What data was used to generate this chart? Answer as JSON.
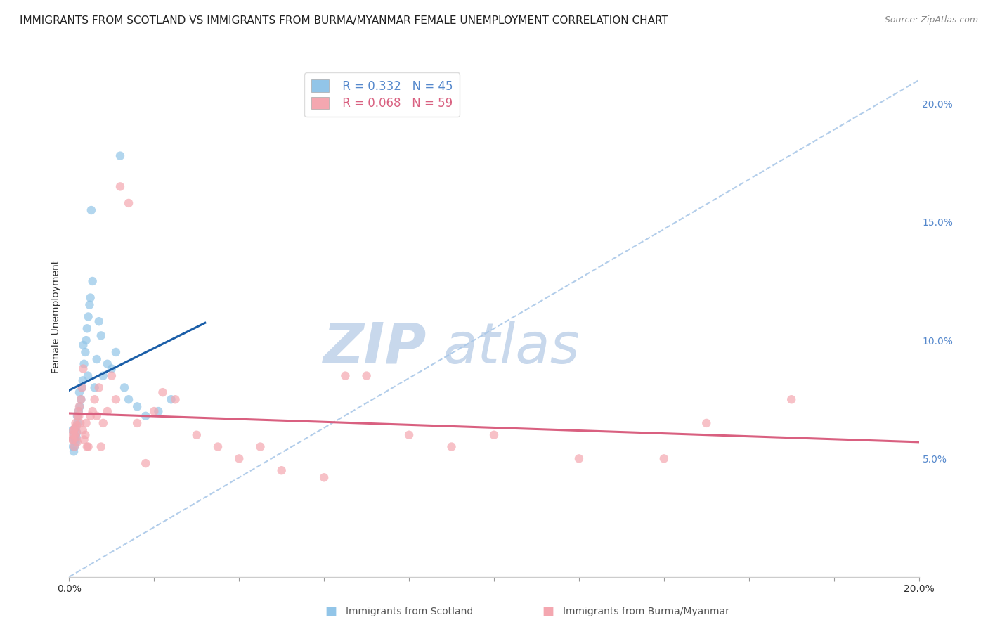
{
  "title": "IMMIGRANTS FROM SCOTLAND VS IMMIGRANTS FROM BURMA/MYANMAR FEMALE UNEMPLOYMENT CORRELATION CHART",
  "source": "Source: ZipAtlas.com",
  "ylabel": "Female Unemployment",
  "right_yticks": [
    "5.0%",
    "10.0%",
    "15.0%",
    "20.0%"
  ],
  "right_ytick_vals": [
    5.0,
    10.0,
    15.0,
    20.0
  ],
  "legend_scotland_r": "R = 0.332",
  "legend_scotland_n": "N = 45",
  "legend_burma_r": "R = 0.068",
  "legend_burma_n": "N = 59",
  "scotland_color": "#92c5e8",
  "burma_color": "#f4a7b0",
  "scotland_line_color": "#1a5ea8",
  "burma_line_color": "#d96080",
  "ref_line_color": "#aac8e8",
  "watermark_zip": "ZIP",
  "watermark_atlas": "atlas",
  "watermark_color": "#c8d8ec",
  "scotland_x": [
    0.08,
    0.1,
    0.12,
    0.13,
    0.15,
    0.16,
    0.17,
    0.18,
    0.2,
    0.22,
    0.25,
    0.28,
    0.3,
    0.32,
    0.35,
    0.38,
    0.4,
    0.42,
    0.45,
    0.48,
    0.5,
    0.55,
    0.6,
    0.65,
    0.7,
    0.8,
    0.9,
    1.0,
    1.1,
    1.2,
    1.4,
    1.6,
    1.8,
    2.1,
    2.4,
    0.09,
    0.11,
    0.14,
    0.19,
    0.24,
    0.33,
    0.44,
    0.52,
    0.75,
    1.3
  ],
  "scotland_y": [
    6.2,
    5.8,
    6.0,
    5.5,
    6.3,
    5.7,
    5.9,
    6.1,
    6.5,
    7.0,
    7.2,
    7.5,
    8.0,
    8.3,
    9.0,
    9.5,
    10.0,
    10.5,
    11.0,
    11.5,
    11.8,
    12.5,
    8.0,
    9.2,
    10.8,
    8.5,
    9.0,
    8.8,
    9.5,
    17.8,
    7.5,
    7.2,
    6.8,
    7.0,
    7.5,
    5.5,
    5.3,
    5.8,
    6.8,
    7.8,
    9.8,
    8.5,
    15.5,
    10.2,
    8.0
  ],
  "burma_x": [
    0.07,
    0.09,
    0.1,
    0.12,
    0.13,
    0.14,
    0.15,
    0.16,
    0.17,
    0.18,
    0.19,
    0.2,
    0.22,
    0.24,
    0.26,
    0.28,
    0.3,
    0.32,
    0.35,
    0.38,
    0.4,
    0.45,
    0.5,
    0.55,
    0.6,
    0.7,
    0.8,
    0.9,
    1.0,
    1.2,
    1.4,
    1.6,
    2.0,
    2.5,
    3.0,
    3.5,
    4.0,
    5.0,
    6.0,
    7.0,
    8.0,
    9.0,
    14.0,
    0.08,
    0.11,
    0.23,
    0.42,
    0.65,
    1.1,
    1.8,
    2.2,
    4.5,
    6.5,
    10.0,
    12.0,
    15.0,
    17.0,
    0.33,
    0.75
  ],
  "burma_y": [
    6.0,
    5.8,
    6.2,
    5.5,
    6.0,
    6.3,
    6.5,
    5.9,
    6.1,
    6.4,
    5.7,
    6.8,
    7.0,
    7.2,
    6.5,
    7.5,
    8.0,
    6.2,
    5.8,
    6.0,
    6.5,
    5.5,
    6.8,
    7.0,
    7.5,
    8.0,
    6.5,
    7.0,
    8.5,
    16.5,
    15.8,
    6.5,
    7.0,
    7.5,
    6.0,
    5.5,
    5.0,
    4.5,
    4.2,
    8.5,
    6.0,
    5.5,
    5.0,
    5.8,
    6.2,
    6.8,
    5.5,
    6.8,
    7.5,
    4.8,
    7.8,
    5.5,
    8.5,
    6.0,
    5.0,
    6.5,
    7.5,
    8.8,
    5.5
  ],
  "xlim": [
    0.0,
    20.0
  ],
  "ylim": [
    0.0,
    22.0
  ],
  "xticks": [
    0.0,
    2.0,
    4.0,
    6.0,
    8.0,
    10.0,
    12.0,
    14.0,
    16.0,
    18.0,
    20.0
  ],
  "xtick_labels": [
    "0.0%",
    "",
    "",
    "",
    "",
    "",
    "",
    "",
    "",
    "",
    "20.0%"
  ],
  "grid_color": "#e8e8e8",
  "background_color": "#ffffff",
  "title_fontsize": 11,
  "source_fontsize": 9,
  "axis_label_fontsize": 10,
  "tick_fontsize": 10,
  "legend_fontsize": 12
}
